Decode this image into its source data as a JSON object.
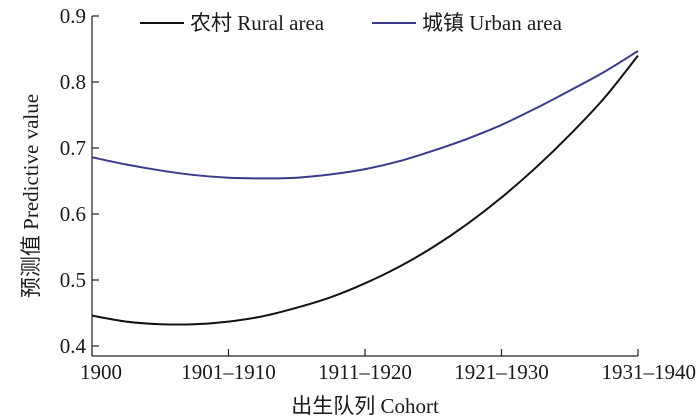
{
  "chart_data": {
    "type": "line",
    "title": "",
    "xlabel": "出生队列 Cohort",
    "ylabel": "预测值 Predictive value",
    "categories": [
      "1900",
      "1901–1910",
      "1911–1920",
      "1921–1930",
      "1931–1940"
    ],
    "xlim": [
      0,
      4
    ],
    "ylim": [
      0.4,
      0.9
    ],
    "yticks": [
      "0.4",
      "0.5",
      "0.6",
      "0.7",
      "0.8",
      "0.9"
    ],
    "grid": false,
    "legend_position": "top",
    "series": [
      {
        "name": "农村 Rural area",
        "color": "#111111",
        "x": [
          0,
          0.25,
          0.5,
          0.75,
          1,
          1.25,
          1.5,
          1.75,
          2,
          2.25,
          2.5,
          2.75,
          3,
          3.25,
          3.5,
          3.75,
          4
        ],
        "values": [
          0.446,
          0.437,
          0.433,
          0.433,
          0.437,
          0.445,
          0.458,
          0.474,
          0.495,
          0.52,
          0.55,
          0.585,
          0.625,
          0.67,
          0.72,
          0.775,
          0.84
        ]
      },
      {
        "name": "城镇 Urban area",
        "color": "#3b3b8a",
        "x": [
          0,
          0.25,
          0.5,
          0.75,
          1,
          1.25,
          1.5,
          1.75,
          2,
          2.25,
          2.5,
          2.75,
          3,
          3.25,
          3.5,
          3.75,
          4
        ],
        "values": [
          0.686,
          0.675,
          0.666,
          0.659,
          0.655,
          0.654,
          0.655,
          0.66,
          0.668,
          0.68,
          0.696,
          0.714,
          0.735,
          0.76,
          0.787,
          0.815,
          0.847
        ]
      }
    ]
  }
}
